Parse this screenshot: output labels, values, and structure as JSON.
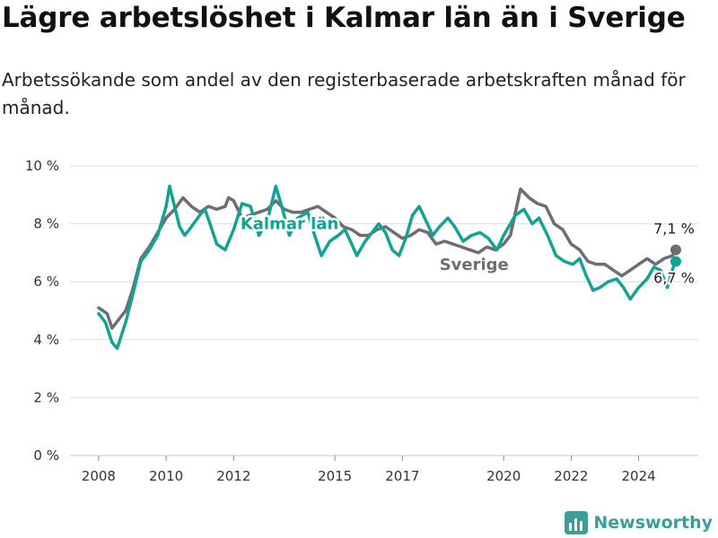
{
  "title": "Lägre arbetslöshet i Kalmar län än i Sverige",
  "subtitle": "Arbetssökande som andel av den registerbaserade arbetskraften månad för månad.",
  "brand": "Newsworthy",
  "colors": {
    "kalmar": "#12a394",
    "sverige": "#6f6d72",
    "grid": "#dddddd",
    "brand": "#3a9f98"
  },
  "chart_data": {
    "type": "line",
    "title": "Lägre arbetslöshet i Kalmar län än i Sverige",
    "subtitle": "Arbetssökande som andel av den registerbaserade arbetskraften månad för månad.",
    "xlabel": "",
    "ylabel": "",
    "ylim": [
      0,
      10
    ],
    "yticks": [
      0,
      2,
      4,
      6,
      8,
      10
    ],
    "ytick_labels": [
      "0 %",
      "2 %",
      "4 %",
      "6 %",
      "8 %",
      "10 %"
    ],
    "xlim": [
      2008,
      2025.5
    ],
    "xticks": [
      2008,
      2010,
      2012,
      2015,
      2017,
      2020,
      2022,
      2024
    ],
    "xtick_labels": [
      "2008",
      "2010",
      "2012",
      "2015",
      "2017",
      "2020",
      "2022",
      "2024"
    ],
    "grid": true,
    "series": [
      {
        "name": "Sverige",
        "end_label": "7,1 %",
        "points": [
          [
            2008.0,
            5.1
          ],
          [
            2008.25,
            4.9
          ],
          [
            2008.4,
            4.4
          ],
          [
            2008.6,
            4.7
          ],
          [
            2008.8,
            5.0
          ],
          [
            2009.0,
            5.7
          ],
          [
            2009.25,
            6.8
          ],
          [
            2009.5,
            7.2
          ],
          [
            2009.75,
            7.7
          ],
          [
            2010.0,
            8.2
          ],
          [
            2010.25,
            8.5
          ],
          [
            2010.5,
            8.9
          ],
          [
            2010.75,
            8.6
          ],
          [
            2011.0,
            8.4
          ],
          [
            2011.25,
            8.6
          ],
          [
            2011.5,
            8.5
          ],
          [
            2011.75,
            8.6
          ],
          [
            2011.85,
            8.9
          ],
          [
            2012.0,
            8.8
          ],
          [
            2012.25,
            8.2
          ],
          [
            2012.5,
            8.3
          ],
          [
            2012.75,
            8.4
          ],
          [
            2013.0,
            8.5
          ],
          [
            2013.25,
            8.8
          ],
          [
            2013.5,
            8.5
          ],
          [
            2013.75,
            8.4
          ],
          [
            2014.0,
            8.4
          ],
          [
            2014.25,
            8.5
          ],
          [
            2014.5,
            8.6
          ],
          [
            2014.75,
            8.4
          ],
          [
            2015.0,
            8.2
          ],
          [
            2015.25,
            7.9
          ],
          [
            2015.5,
            7.8
          ],
          [
            2015.75,
            7.6
          ],
          [
            2016.0,
            7.6
          ],
          [
            2016.25,
            7.8
          ],
          [
            2016.5,
            7.9
          ],
          [
            2016.75,
            7.7
          ],
          [
            2017.0,
            7.5
          ],
          [
            2017.25,
            7.6
          ],
          [
            2017.5,
            7.8
          ],
          [
            2017.75,
            7.7
          ],
          [
            2018.0,
            7.3
          ],
          [
            2018.25,
            7.4
          ],
          [
            2018.5,
            7.3
          ],
          [
            2018.75,
            7.2
          ],
          [
            2019.0,
            7.1
          ],
          [
            2019.25,
            7.0
          ],
          [
            2019.5,
            7.2
          ],
          [
            2019.75,
            7.1
          ],
          [
            2020.0,
            7.3
          ],
          [
            2020.2,
            7.6
          ],
          [
            2020.35,
            8.4
          ],
          [
            2020.5,
            9.2
          ],
          [
            2020.75,
            8.9
          ],
          [
            2021.0,
            8.7
          ],
          [
            2021.25,
            8.6
          ],
          [
            2021.5,
            8.0
          ],
          [
            2021.75,
            7.8
          ],
          [
            2022.0,
            7.3
          ],
          [
            2022.25,
            7.1
          ],
          [
            2022.5,
            6.7
          ],
          [
            2022.75,
            6.6
          ],
          [
            2023.0,
            6.6
          ],
          [
            2023.25,
            6.4
          ],
          [
            2023.5,
            6.2
          ],
          [
            2023.75,
            6.4
          ],
          [
            2024.0,
            6.6
          ],
          [
            2024.25,
            6.8
          ],
          [
            2024.5,
            6.6
          ],
          [
            2024.75,
            6.8
          ],
          [
            2025.0,
            6.9
          ],
          [
            2025.1,
            7.1
          ]
        ]
      },
      {
        "name": "Kalmar län",
        "end_label": "6,7 %",
        "points": [
          [
            2008.0,
            4.9
          ],
          [
            2008.2,
            4.6
          ],
          [
            2008.4,
            3.9
          ],
          [
            2008.55,
            3.7
          ],
          [
            2008.8,
            4.6
          ],
          [
            2009.0,
            5.5
          ],
          [
            2009.25,
            6.7
          ],
          [
            2009.5,
            7.1
          ],
          [
            2009.75,
            7.6
          ],
          [
            2010.0,
            8.6
          ],
          [
            2010.1,
            9.3
          ],
          [
            2010.25,
            8.6
          ],
          [
            2010.4,
            7.9
          ],
          [
            2010.55,
            7.6
          ],
          [
            2010.75,
            7.9
          ],
          [
            2011.0,
            8.3
          ],
          [
            2011.15,
            8.5
          ],
          [
            2011.3,
            8.0
          ],
          [
            2011.5,
            7.3
          ],
          [
            2011.75,
            7.1
          ],
          [
            2012.0,
            7.8
          ],
          [
            2012.25,
            8.7
          ],
          [
            2012.5,
            8.6
          ],
          [
            2012.75,
            7.6
          ],
          [
            2013.0,
            8.1
          ],
          [
            2013.25,
            9.3
          ],
          [
            2013.45,
            8.5
          ],
          [
            2013.65,
            7.6
          ],
          [
            2013.9,
            8.2
          ],
          [
            2014.2,
            8.4
          ],
          [
            2014.4,
            7.6
          ],
          [
            2014.6,
            6.9
          ],
          [
            2014.85,
            7.4
          ],
          [
            2015.1,
            7.6
          ],
          [
            2015.3,
            7.8
          ],
          [
            2015.5,
            7.3
          ],
          [
            2015.65,
            6.9
          ],
          [
            2015.9,
            7.4
          ],
          [
            2016.1,
            7.7
          ],
          [
            2016.3,
            8.0
          ],
          [
            2016.5,
            7.7
          ],
          [
            2016.7,
            7.1
          ],
          [
            2016.9,
            6.9
          ],
          [
            2017.1,
            7.5
          ],
          [
            2017.3,
            8.3
          ],
          [
            2017.5,
            8.6
          ],
          [
            2017.7,
            8.1
          ],
          [
            2017.9,
            7.6
          ],
          [
            2018.1,
            7.9
          ],
          [
            2018.35,
            8.2
          ],
          [
            2018.55,
            7.9
          ],
          [
            2018.8,
            7.4
          ],
          [
            2019.05,
            7.6
          ],
          [
            2019.3,
            7.7
          ],
          [
            2019.55,
            7.5
          ],
          [
            2019.8,
            7.1
          ],
          [
            2020.0,
            7.6
          ],
          [
            2020.2,
            8.0
          ],
          [
            2020.35,
            8.3
          ],
          [
            2020.6,
            8.5
          ],
          [
            2020.85,
            8.0
          ],
          [
            2021.05,
            8.2
          ],
          [
            2021.3,
            7.6
          ],
          [
            2021.55,
            6.9
          ],
          [
            2021.8,
            6.7
          ],
          [
            2022.05,
            6.6
          ],
          [
            2022.25,
            6.8
          ],
          [
            2022.45,
            6.2
          ],
          [
            2022.65,
            5.7
          ],
          [
            2022.85,
            5.8
          ],
          [
            2023.1,
            6.0
          ],
          [
            2023.35,
            6.1
          ],
          [
            2023.55,
            5.8
          ],
          [
            2023.75,
            5.4
          ],
          [
            2024.0,
            5.8
          ],
          [
            2024.25,
            6.1
          ],
          [
            2024.45,
            6.5
          ],
          [
            2024.65,
            6.4
          ],
          [
            2024.85,
            5.8
          ],
          [
            2025.05,
            6.6
          ],
          [
            2025.1,
            6.7
          ]
        ]
      }
    ]
  }
}
